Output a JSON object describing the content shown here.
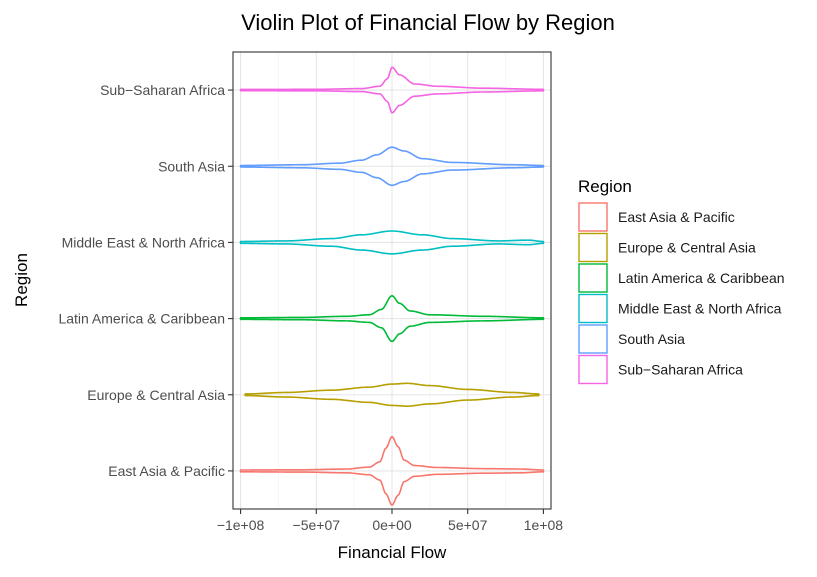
{
  "chart_data": {
    "type": "violin",
    "title": "Violin Plot of Financial Flow by Region",
    "xlabel": "Financial Flow",
    "ylabel": "Region",
    "xlim": [
      -105000000,
      105000000
    ],
    "x_ticks": [
      -100000000,
      -50000000,
      0,
      50000000,
      100000000
    ],
    "x_tick_labels": [
      "−1e+08",
      "−5e+07",
      "0e+00",
      "5e+07",
      "1e+08"
    ],
    "categories": [
      "East Asia & Pacific",
      "Europe & Central Asia",
      "Latin America & Caribbean",
      "Middle East & North Africa",
      "South Asia",
      "Sub−Saharan Africa"
    ],
    "grid": true,
    "legend": {
      "title": "Region",
      "position": "right",
      "entries": [
        "East Asia & Pacific",
        "Europe & Central Asia",
        "Latin America & Caribbean",
        "Middle East & North Africa",
        "South Asia",
        "Sub−Saharan Africa"
      ]
    },
    "series": [
      {
        "name": "East Asia & Pacific",
        "color": "#F8766D",
        "range": [
          -100000000,
          100000000
        ],
        "profile": [
          [
            -100000000,
            0.012
          ],
          [
            -60000000,
            0.015
          ],
          [
            -30000000,
            0.025
          ],
          [
            -15000000,
            0.05
          ],
          [
            -8000000,
            0.12
          ],
          [
            -4000000,
            0.3
          ],
          [
            0,
            0.45
          ],
          [
            4000000,
            0.32
          ],
          [
            8000000,
            0.14
          ],
          [
            15000000,
            0.07
          ],
          [
            30000000,
            0.045
          ],
          [
            60000000,
            0.03
          ],
          [
            85000000,
            0.025
          ],
          [
            100000000,
            0.012
          ]
        ]
      },
      {
        "name": "Europe & Central Asia",
        "color": "#B79F00",
        "range": [
          -97000000,
          97000000
        ],
        "profile": [
          [
            -97000000,
            0.01
          ],
          [
            -70000000,
            0.03
          ],
          [
            -40000000,
            0.06
          ],
          [
            -15000000,
            0.1
          ],
          [
            0,
            0.14
          ],
          [
            10000000,
            0.15
          ],
          [
            25000000,
            0.12
          ],
          [
            50000000,
            0.07
          ],
          [
            80000000,
            0.03
          ],
          [
            97000000,
            0.01
          ]
        ]
      },
      {
        "name": "Latin America & Caribbean",
        "color": "#00BA38",
        "range": [
          -100000000,
          100000000
        ],
        "profile": [
          [
            -100000000,
            0.01
          ],
          [
            -60000000,
            0.015
          ],
          [
            -30000000,
            0.03
          ],
          [
            -15000000,
            0.05
          ],
          [
            -7000000,
            0.12
          ],
          [
            0,
            0.3
          ],
          [
            5000000,
            0.2
          ],
          [
            12000000,
            0.1
          ],
          [
            25000000,
            0.05
          ],
          [
            60000000,
            0.03
          ],
          [
            100000000,
            0.01
          ]
        ]
      },
      {
        "name": "Middle East & North Africa",
        "color": "#00BFC4",
        "range": [
          -100000000,
          100000000
        ],
        "profile": [
          [
            -100000000,
            0.012
          ],
          [
            -70000000,
            0.02
          ],
          [
            -40000000,
            0.05
          ],
          [
            -20000000,
            0.1
          ],
          [
            0,
            0.15
          ],
          [
            20000000,
            0.1
          ],
          [
            40000000,
            0.05
          ],
          [
            70000000,
            0.02
          ],
          [
            90000000,
            0.03
          ],
          [
            100000000,
            0.012
          ]
        ]
      },
      {
        "name": "South Asia",
        "color": "#619CFF",
        "range": [
          -100000000,
          100000000
        ],
        "profile": [
          [
            -100000000,
            0.01
          ],
          [
            -60000000,
            0.02
          ],
          [
            -35000000,
            0.04
          ],
          [
            -20000000,
            0.08
          ],
          [
            -10000000,
            0.15
          ],
          [
            0,
            0.25
          ],
          [
            8000000,
            0.2
          ],
          [
            20000000,
            0.1
          ],
          [
            40000000,
            0.05
          ],
          [
            80000000,
            0.02
          ],
          [
            100000000,
            0.01
          ]
        ]
      },
      {
        "name": "Sub−Saharan Africa",
        "color": "#F564E3",
        "range": [
          -100000000,
          100000000
        ],
        "profile": [
          [
            -100000000,
            0.008
          ],
          [
            -50000000,
            0.01
          ],
          [
            -20000000,
            0.02
          ],
          [
            -8000000,
            0.05
          ],
          [
            -3000000,
            0.15
          ],
          [
            0,
            0.3
          ],
          [
            5000000,
            0.2
          ],
          [
            15000000,
            0.08
          ],
          [
            30000000,
            0.05
          ],
          [
            60000000,
            0.025
          ],
          [
            100000000,
            0.01
          ]
        ]
      }
    ]
  }
}
